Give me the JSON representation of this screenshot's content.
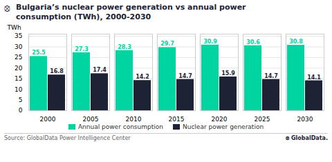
{
  "chart_data": {
    "type": "bar",
    "title": "Bulgaria’s nuclear power generation vs annual power\nconsumption (TWh), 2000-2030",
    "annotations": [
      "⦻",
      "Source: GlobalData Power Intelligence Center",
      "⦻ GlobalData."
    ],
    "categories": [
      "2000",
      "2005",
      "2010",
      "2015",
      "2020",
      "2025",
      "2030"
    ],
    "series": [
      {
        "name": "Annual power consumption",
        "color": "#00d4a0",
        "values": [
          25.5,
          27.3,
          28.3,
          29.7,
          30.9,
          30.6,
          30.8
        ]
      },
      {
        "name": "Nuclear power generation",
        "color": "#1e2235",
        "values": [
          16.8,
          17.4,
          14.2,
          14.7,
          15.9,
          14.7,
          14.1
        ]
      }
    ],
    "ylabel": "TWh",
    "ylim": [
      0,
      36
    ],
    "yticks": [
      0,
      5,
      10,
      15,
      20,
      25,
      30,
      35
    ],
    "grid": true,
    "legend": "bottom",
    "data_labels": true
  }
}
